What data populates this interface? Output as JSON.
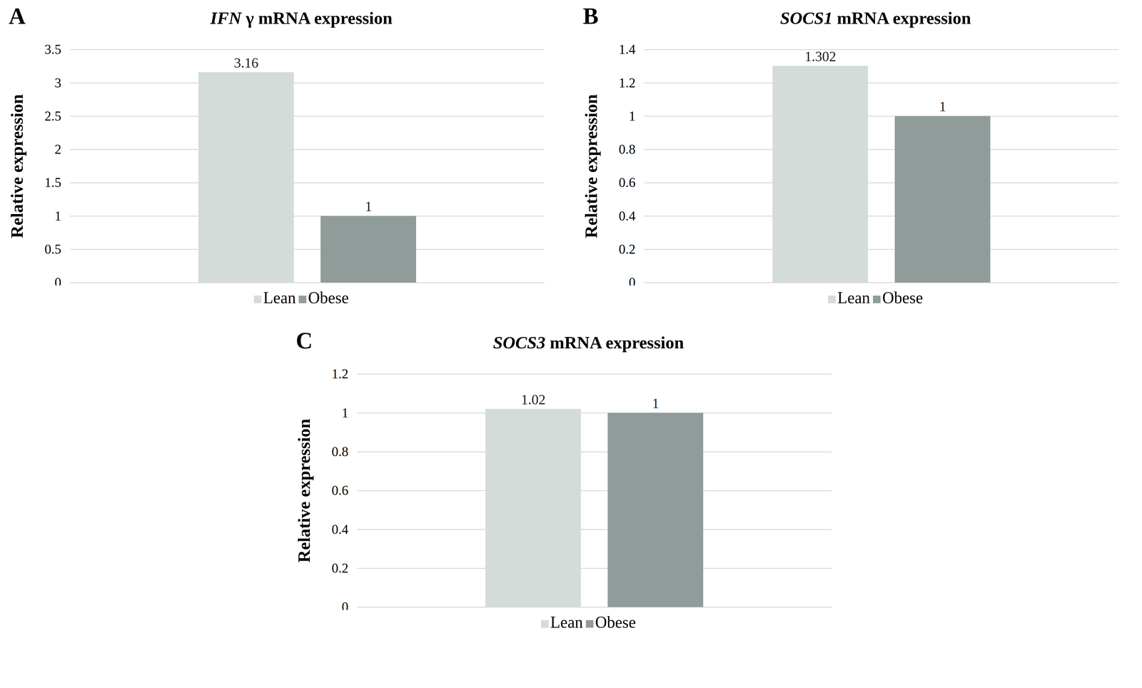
{
  "chart_data": [
    {
      "type": "bar",
      "annotations": [
        "A"
      ],
      "title": "IFN γ mRNA expression",
      "y_label": "Relative expression",
      "categories": [
        "Lean",
        "Obese"
      ],
      "values": [
        3.16,
        1
      ],
      "colors": [
        "#d3dcd9",
        "#8f9c9a"
      ],
      "ylim": [
        0,
        3.5
      ],
      "yticks": [
        0,
        0.5,
        1,
        1.5,
        2,
        2.5,
        3,
        3.5
      ],
      "grid": true,
      "data_labels": true,
      "tick_labels": "y",
      "legend": "bottom"
    },
    {
      "type": "bar",
      "annotations": [
        "B"
      ],
      "title": "SOCS1 mRNA expression",
      "y_label": "Relative expression",
      "categories": [
        "Lean",
        "Obese"
      ],
      "values": [
        1.302,
        1
      ],
      "colors": [
        "#d3dcd9",
        "#8f9c9a"
      ],
      "ylim": [
        0,
        1.4
      ],
      "yticks": [
        0,
        0.2,
        0.4,
        0.6,
        0.8,
        1,
        1.2,
        1.4
      ],
      "grid": true,
      "data_labels": true,
      "tick_labels": "y",
      "legend": "bottom"
    },
    {
      "type": "bar",
      "annotations": [
        "C"
      ],
      "title": "SOCS3 mRNA expression",
      "y_label": "Relative expression",
      "categories": [
        "Lean",
        "Obese"
      ],
      "values": [
        1.02,
        1
      ],
      "colors": [
        "#d3dcd9",
        "#8f9c9a"
      ],
      "ylim": [
        0,
        1.2
      ],
      "yticks": [
        0,
        0.2,
        0.4,
        0.6,
        0.8,
        1,
        1.2
      ],
      "grid": true,
      "data_labels": true,
      "tick_labels": "y",
      "legend": "bottom"
    }
  ]
}
